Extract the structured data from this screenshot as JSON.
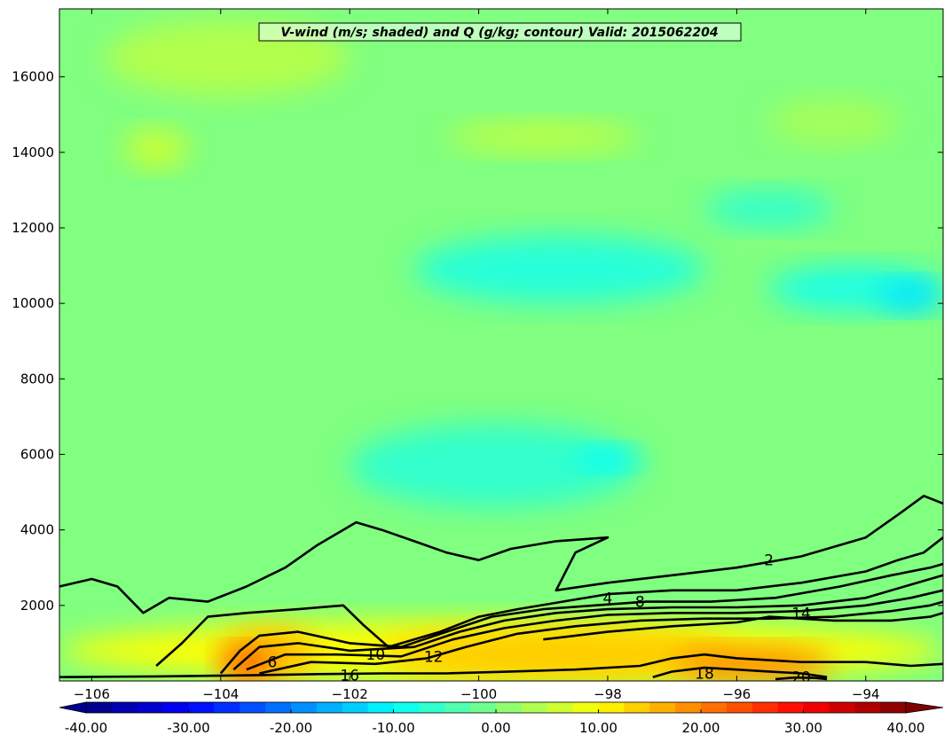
{
  "chart_data": {
    "type": "heatmap",
    "title": "V-wind (m/s; shaded) and Q (g/kg; contour) Valid: 2015062204",
    "xlabel": "",
    "ylabel": "",
    "xlim": [
      -106.5,
      -92.8
    ],
    "ylim": [
      0,
      17800
    ],
    "x_ticks": [
      -106,
      -104,
      -102,
      -100,
      -98,
      -96,
      -94
    ],
    "y_ticks": [
      2000,
      4000,
      6000,
      8000,
      10000,
      12000,
      14000,
      16000
    ],
    "colorbar": {
      "min": -40,
      "max": 40,
      "tick_values": [
        -40,
        -30,
        -20,
        -10,
        0,
        10,
        20,
        30,
        40
      ],
      "tick_labels": [
        "-40.00",
        "-30.00",
        "-20.00",
        "-10.00",
        "0.00",
        "10.00",
        "20.00",
        "30.00",
        "40.00"
      ],
      "extend": "both",
      "colormap": "jet"
    },
    "shaded_regions": [
      {
        "x": [
          -106.5,
          -92.8
        ],
        "y": [
          0,
          17800
        ],
        "value": 0
      },
      {
        "x": [
          -105.8,
          -102.0
        ],
        "y": [
          15500,
          17500
        ],
        "value": 4
      },
      {
        "x": [
          -105.5,
          -104.5
        ],
        "y": [
          13600,
          14600
        ],
        "value": 6
      },
      {
        "x": [
          -100.5,
          -97.5
        ],
        "y": [
          14000,
          14800
        ],
        "value": 5
      },
      {
        "x": [
          -95.5,
          -93.5
        ],
        "y": [
          14200,
          15400
        ],
        "value": 3
      },
      {
        "x": [
          -101.0,
          -96.5
        ],
        "y": [
          10000,
          11800
        ],
        "value": -7
      },
      {
        "x": [
          -95.5,
          -92.8
        ],
        "y": [
          9800,
          11000
        ],
        "value": -8
      },
      {
        "x": [
          -93.8,
          -92.8
        ],
        "y": [
          9800,
          10600
        ],
        "value": -12
      },
      {
        "x": [
          -96.5,
          -94.5
        ],
        "y": [
          12000,
          13000
        ],
        "value": -6
      },
      {
        "x": [
          -102.0,
          -97.5
        ],
        "y": [
          4600,
          6800
        ],
        "value": -6
      },
      {
        "x": [
          -98.5,
          -97.5
        ],
        "y": [
          5600,
          6200
        ],
        "value": -10
      },
      {
        "x": [
          -106.5,
          -92.8
        ],
        "y": [
          0,
          1600
        ],
        "value": 10
      },
      {
        "x": [
          -104.0,
          -102.5
        ],
        "y": [
          0,
          1400
        ],
        "value": 15
      },
      {
        "x": [
          -104.0,
          -103.2
        ],
        "y": [
          0,
          900
        ],
        "value": 22
      },
      {
        "x": [
          -101.5,
          -96.0
        ],
        "y": [
          0,
          1400
        ],
        "value": 14
      },
      {
        "x": [
          -97.0,
          -94.5
        ],
        "y": [
          0,
          900
        ],
        "value": 19
      }
    ],
    "contours": [
      {
        "level": 2,
        "label": "2",
        "label_x": -95.5,
        "label_y": 3200,
        "points": [
          [
            -106.5,
            2500
          ],
          [
            -106.0,
            2700
          ],
          [
            -105.6,
            2500
          ],
          [
            -105.2,
            1800
          ],
          [
            -104.8,
            2200
          ],
          [
            -104.2,
            2100
          ],
          [
            -103.6,
            2500
          ],
          [
            -103.0,
            3000
          ],
          [
            -102.5,
            3600
          ],
          [
            -101.9,
            4200
          ],
          [
            -101.5,
            4000
          ],
          [
            -101.0,
            3700
          ],
          [
            -100.5,
            3400
          ],
          [
            -100.0,
            3200
          ],
          [
            -99.5,
            3500
          ],
          [
            -98.8,
            3700
          ],
          [
            -98.0,
            3800
          ],
          [
            -98.5,
            3400
          ],
          [
            -98.8,
            2400
          ],
          [
            -98.0,
            2600
          ],
          [
            -97.0,
            2800
          ],
          [
            -96.0,
            3000
          ],
          [
            -95.0,
            3300
          ],
          [
            -94.0,
            3800
          ],
          [
            -93.5,
            4400
          ],
          [
            -93.1,
            4900
          ],
          [
            -92.8,
            4700
          ]
        ]
      },
      {
        "level": 4,
        "label": "4",
        "label_x": -98.0,
        "label_y": 2200,
        "points": [
          [
            -105.0,
            400
          ],
          [
            -104.6,
            1000
          ],
          [
            -104.2,
            1700
          ],
          [
            -103.6,
            1800
          ],
          [
            -102.8,
            1900
          ],
          [
            -102.1,
            2000
          ],
          [
            -101.8,
            1500
          ],
          [
            -101.4,
            900
          ],
          [
            -100.6,
            1300
          ],
          [
            -100.0,
            1700
          ],
          [
            -99.4,
            1900
          ],
          [
            -98.7,
            2100
          ],
          [
            -98.0,
            2300
          ],
          [
            -97.0,
            2400
          ],
          [
            -96.0,
            2400
          ],
          [
            -95.0,
            2600
          ],
          [
            -94.0,
            2900
          ],
          [
            -93.5,
            3200
          ],
          [
            -93.1,
            3400
          ],
          [
            -92.8,
            3800
          ]
        ]
      },
      {
        "level": 6,
        "label": "6",
        "label_x": -103.2,
        "label_y": 500,
        "points": [
          [
            -104.0,
            200
          ],
          [
            -103.7,
            800
          ],
          [
            -103.4,
            1200
          ],
          [
            -102.8,
            1300
          ],
          [
            -102.0,
            1000
          ],
          [
            -101.2,
            900
          ],
          [
            -100.5,
            1300
          ],
          [
            -99.8,
            1700
          ],
          [
            -99.0,
            1900
          ],
          [
            -98.2,
            2000
          ],
          [
            -97.4,
            2100
          ],
          [
            -96.4,
            2100
          ],
          [
            -95.4,
            2200
          ],
          [
            -94.4,
            2500
          ],
          [
            -93.6,
            2800
          ],
          [
            -93.0,
            3000
          ],
          [
            -92.8,
            3100
          ]
        ]
      },
      {
        "level": 8,
        "label": "8",
        "label_x": -97.5,
        "label_y": 2100,
        "points": [
          [
            -103.8,
            300
          ],
          [
            -103.4,
            900
          ],
          [
            -102.8,
            1000
          ],
          [
            -102.0,
            800
          ],
          [
            -101.0,
            900
          ],
          [
            -100.3,
            1300
          ],
          [
            -99.6,
            1600
          ],
          [
            -98.8,
            1800
          ],
          [
            -98.0,
            1900
          ],
          [
            -97.0,
            1950
          ],
          [
            -96.0,
            1950
          ],
          [
            -95.0,
            2000
          ],
          [
            -94.0,
            2200
          ],
          [
            -93.4,
            2500
          ],
          [
            -93.0,
            2700
          ],
          [
            -92.8,
            2800
          ]
        ]
      },
      {
        "level": 10,
        "label": "10",
        "label_x": -101.6,
        "label_y": 700,
        "points": [
          [
            -103.6,
            300
          ],
          [
            -103.0,
            700
          ],
          [
            -102.2,
            700
          ],
          [
            -101.2,
            650
          ],
          [
            -100.4,
            1100
          ],
          [
            -99.6,
            1400
          ],
          [
            -98.8,
            1600
          ],
          [
            -98.0,
            1750
          ],
          [
            -97.0,
            1800
          ],
          [
            -96.0,
            1800
          ],
          [
            -95.0,
            1850
          ],
          [
            -94.0,
            2000
          ],
          [
            -93.3,
            2200
          ],
          [
            -92.8,
            2400
          ]
        ]
      },
      {
        "level": 12,
        "label": "12",
        "label_x": -100.7,
        "label_y": 650,
        "points": [
          [
            -103.4,
            200
          ],
          [
            -102.6,
            500
          ],
          [
            -101.6,
            450
          ],
          [
            -100.8,
            600
          ],
          [
            -100.2,
            900
          ],
          [
            -99.4,
            1250
          ],
          [
            -98.5,
            1450
          ],
          [
            -97.5,
            1600
          ],
          [
            -96.5,
            1650
          ],
          [
            -95.5,
            1650
          ],
          [
            -94.5,
            1700
          ],
          [
            -93.6,
            1850
          ],
          [
            -93.0,
            2000
          ],
          [
            -92.8,
            2100
          ]
        ]
      },
      {
        "level": 14,
        "label": "14",
        "label_x": -95.0,
        "label_y": 1800,
        "points": [
          [
            -99.0,
            1100
          ],
          [
            -98.0,
            1300
          ],
          [
            -97.0,
            1450
          ],
          [
            -96.0,
            1550
          ],
          [
            -95.5,
            1700
          ],
          [
            -94.5,
            1600
          ],
          [
            -93.6,
            1600
          ],
          [
            -93.0,
            1700
          ],
          [
            -92.8,
            1800
          ]
        ]
      },
      {
        "level": 16,
        "label": "16",
        "label_x": -102.0,
        "label_y": 150,
        "points": [
          [
            -106.5,
            100
          ],
          [
            -105.0,
            120
          ],
          [
            -103.5,
            150
          ],
          [
            -102.5,
            180
          ],
          [
            -101.5,
            200
          ],
          [
            -100.5,
            200
          ],
          [
            -99.5,
            250
          ],
          [
            -98.5,
            300
          ],
          [
            -97.5,
            400
          ],
          [
            -97.0,
            600
          ],
          [
            -96.5,
            700
          ],
          [
            -96.0,
            600
          ],
          [
            -95.0,
            500
          ],
          [
            -94.0,
            500
          ],
          [
            -93.3,
            400
          ],
          [
            -92.8,
            450
          ]
        ]
      },
      {
        "level": 18,
        "label": "18",
        "label_x": -96.5,
        "label_y": 200,
        "points": [
          [
            -97.3,
            100
          ],
          [
            -97.0,
            250
          ],
          [
            -96.5,
            350
          ],
          [
            -96.0,
            300
          ],
          [
            -95.5,
            250
          ],
          [
            -95.0,
            200
          ],
          [
            -94.6,
            100
          ]
        ]
      },
      {
        "level": 20,
        "label": "20",
        "label_x": -95.0,
        "label_y": 100,
        "points": [
          [
            -95.4,
            50
          ],
          [
            -95.1,
            90
          ],
          [
            -94.8,
            80
          ],
          [
            -94.6,
            50
          ]
        ]
      }
    ]
  }
}
